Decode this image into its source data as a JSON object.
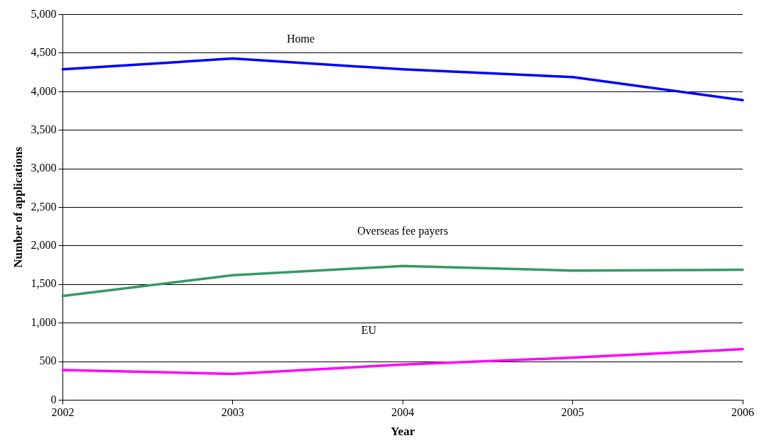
{
  "chart_data": {
    "type": "line",
    "xlabel": "Year",
    "ylabel": "Number of applications",
    "x": [
      2002,
      2003,
      2004,
      2005,
      2006
    ],
    "series": [
      {
        "name": "Home",
        "color": "#0000ff",
        "values": [
          4290,
          4430,
          4290,
          4190,
          3890
        ]
      },
      {
        "name": "Overseas fee payers",
        "color": "#339966",
        "values": [
          1350,
          1620,
          1740,
          1680,
          1690
        ]
      },
      {
        "name": "EU",
        "color": "#ff00ff",
        "values": [
          390,
          340,
          460,
          550,
          660
        ]
      }
    ],
    "xlim": [
      2002,
      2006
    ],
    "xticks": [
      2002,
      2003,
      2004,
      2005,
      2006
    ],
    "ylim": [
      0,
      5000
    ],
    "yticks": [
      0,
      500,
      {
        "value": 1000,
        "label": "1,000"
      },
      {
        "value": 1500,
        "label": "1,500"
      },
      {
        "value": 2000,
        "label": "2,000"
      },
      {
        "value": 2500,
        "label": "2,500"
      },
      {
        "value": 3000,
        "label": "3,000"
      },
      {
        "value": 3500,
        "label": "3,500"
      },
      {
        "value": 4000,
        "label": "4,000"
      },
      {
        "value": 4500,
        "label": "4,500"
      },
      {
        "value": 5000,
        "label": "5,000"
      }
    ],
    "grid": "y",
    "legend": false,
    "marker": "none",
    "line_style": "solid"
  }
}
